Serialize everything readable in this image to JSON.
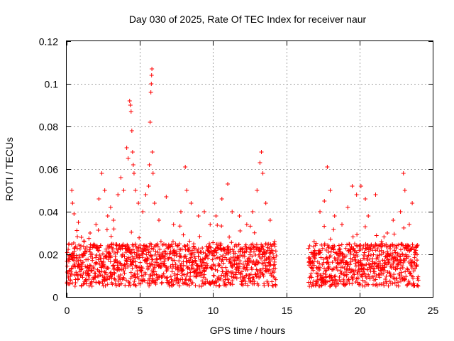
{
  "chart_data": {
    "type": "scatter",
    "title": "Day 030 of 2025, Rate Of TEC Index for receiver naur",
    "xlabel": "GPS time / hours",
    "ylabel": "ROTI / TECUs",
    "xlim": [
      0,
      25
    ],
    "ylim": [
      0,
      0.12
    ],
    "x_ticks": [
      "0",
      "5",
      "10",
      "15",
      "20",
      "25"
    ],
    "y_ticks": [
      "0",
      "0.02",
      "0.04",
      "0.06",
      "0.08",
      "0.1",
      "0.12"
    ],
    "x_tick_values": [
      0,
      5,
      10,
      15,
      20,
      25
    ],
    "y_tick_values": [
      0,
      0.02,
      0.04,
      0.06,
      0.07999999999999999,
      0.1,
      0.12
    ],
    "grid": true,
    "marker": "+",
    "color": "#ff0000",
    "data_gap_hours": [
      14.3,
      16.5
    ],
    "data_coverage_hours": [
      [
        0,
        14.3
      ],
      [
        16.5,
        24.0
      ]
    ],
    "typical_range": [
      0.005,
      0.025
    ],
    "series": [
      {
        "points": [
          [
            0.1,
            0.018
          ],
          [
            0.3,
            0.012
          ],
          [
            0.35,
            0.05
          ],
          [
            0.4,
            0.044
          ],
          [
            0.5,
            0.039
          ],
          [
            0.8,
            0.035
          ],
          [
            1.0,
            0.028
          ],
          [
            1.2,
            0.026
          ],
          [
            1.6,
            0.03
          ],
          [
            2.0,
            0.034
          ],
          [
            2.2,
            0.046
          ],
          [
            2.4,
            0.058
          ],
          [
            2.6,
            0.05
          ],
          [
            2.8,
            0.038
          ],
          [
            3.0,
            0.042
          ],
          [
            3.2,
            0.036
          ],
          [
            3.5,
            0.048
          ],
          [
            3.7,
            0.056
          ],
          [
            3.9,
            0.05
          ],
          [
            4.1,
            0.07
          ],
          [
            4.2,
            0.065
          ],
          [
            4.3,
            0.092
          ],
          [
            4.35,
            0.09
          ],
          [
            4.4,
            0.087
          ],
          [
            4.45,
            0.078
          ],
          [
            4.5,
            0.068
          ],
          [
            4.55,
            0.062
          ],
          [
            4.6,
            0.058
          ],
          [
            4.7,
            0.05
          ],
          [
            4.9,
            0.044
          ],
          [
            5.2,
            0.04
          ],
          [
            5.4,
            0.048
          ],
          [
            5.6,
            0.052
          ],
          [
            5.65,
            0.062
          ],
          [
            5.7,
            0.082
          ],
          [
            5.75,
            0.096
          ],
          [
            5.78,
            0.1
          ],
          [
            5.8,
            0.104
          ],
          [
            5.82,
            0.107
          ],
          [
            5.85,
            0.068
          ],
          [
            5.9,
            0.058
          ],
          [
            6.0,
            0.044
          ],
          [
            6.3,
            0.036
          ],
          [
            6.8,
            0.047
          ],
          [
            7.3,
            0.034
          ],
          [
            7.8,
            0.04
          ],
          [
            8.1,
            0.061
          ],
          [
            8.2,
            0.05
          ],
          [
            8.5,
            0.044
          ],
          [
            9.0,
            0.038
          ],
          [
            9.4,
            0.04
          ],
          [
            9.8,
            0.034
          ],
          [
            10.2,
            0.038
          ],
          [
            10.6,
            0.046
          ],
          [
            11.0,
            0.053
          ],
          [
            11.3,
            0.04
          ],
          [
            11.8,
            0.038
          ],
          [
            12.3,
            0.034
          ],
          [
            12.7,
            0.04
          ],
          [
            13.0,
            0.05
          ],
          [
            13.2,
            0.063
          ],
          [
            13.3,
            0.068
          ],
          [
            13.4,
            0.058
          ],
          [
            13.6,
            0.044
          ],
          [
            13.9,
            0.036
          ],
          [
            14.2,
            0.026
          ],
          [
            16.6,
            0.024
          ],
          [
            16.9,
            0.026
          ],
          [
            17.3,
            0.04
          ],
          [
            17.6,
            0.045
          ],
          [
            17.8,
            0.061
          ],
          [
            18.0,
            0.05
          ],
          [
            18.3,
            0.038
          ],
          [
            18.8,
            0.034
          ],
          [
            19.2,
            0.042
          ],
          [
            19.5,
            0.052
          ],
          [
            19.8,
            0.048
          ],
          [
            20.1,
            0.052
          ],
          [
            20.4,
            0.046
          ],
          [
            20.6,
            0.038
          ],
          [
            21.1,
            0.048
          ],
          [
            21.5,
            0.026
          ],
          [
            21.9,
            0.03
          ],
          [
            22.3,
            0.036
          ],
          [
            22.8,
            0.04
          ],
          [
            23.0,
            0.058
          ],
          [
            23.1,
            0.05
          ],
          [
            23.4,
            0.034
          ],
          [
            23.6,
            0.044
          ],
          [
            23.9,
            0.024
          ]
        ]
      }
    ]
  }
}
